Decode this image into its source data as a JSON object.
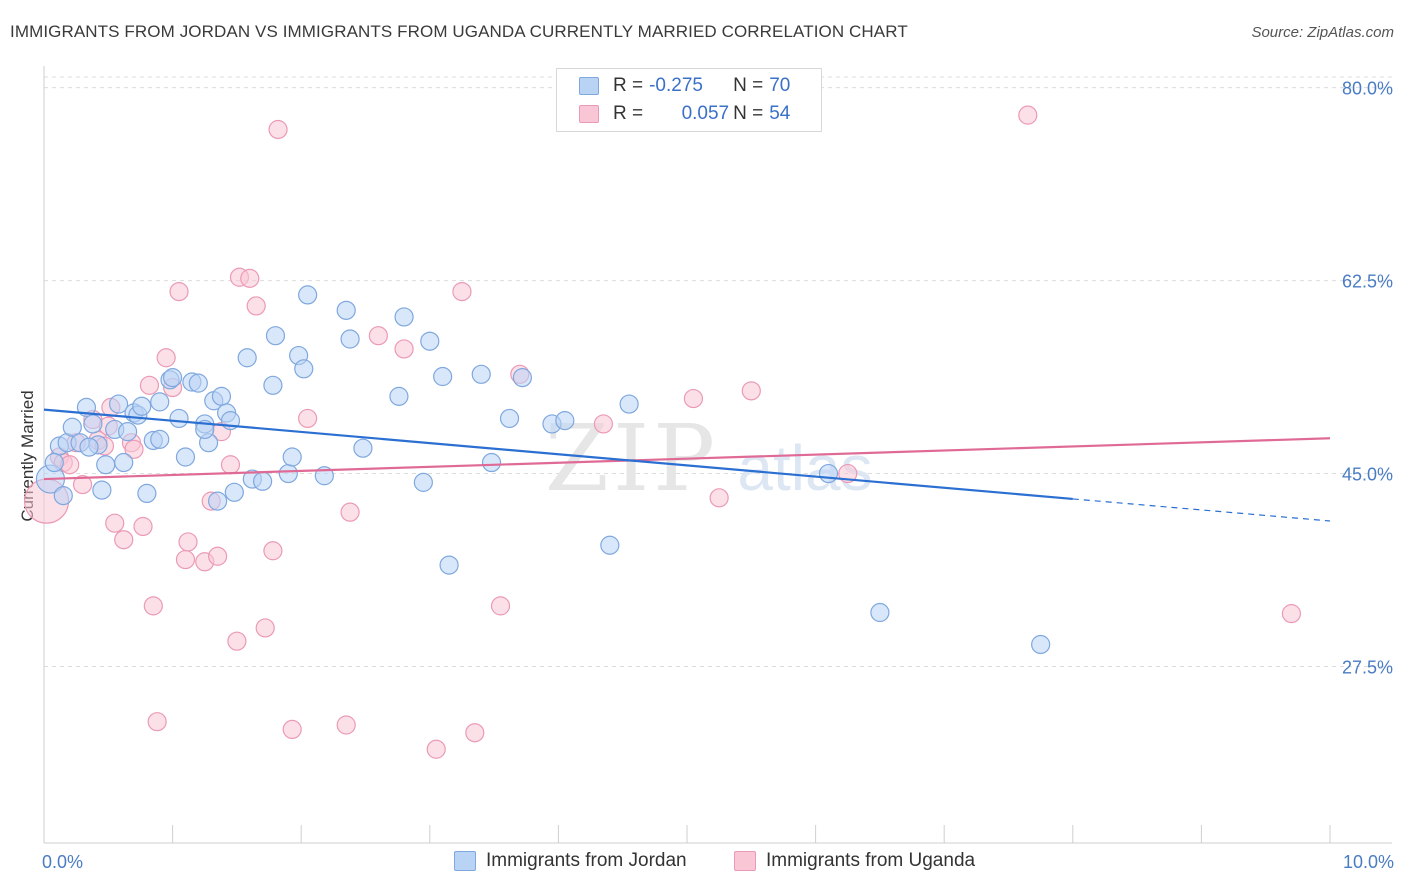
{
  "title": "IMMIGRANTS FROM JORDAN VS IMMIGRANTS FROM UGANDA CURRENTLY MARRIED CORRELATION CHART",
  "source": "Source: ZipAtlas.com",
  "watermark": {
    "zip": "ZIP",
    "atlas": "atlas"
  },
  "colors": {
    "jordan_fill": "#b9d3f5",
    "jordan_stroke": "#7fa8de",
    "jordan_line": "#2a6fd1",
    "uganda_fill": "#f9c6d6",
    "uganda_stroke": "#eb9ab5",
    "uganda_line": "#e06a96",
    "tick": "#4a7cc4",
    "grid": "#dcdcdc"
  },
  "legend": {
    "r_label": "R =",
    "n_label": "N =",
    "rows": [
      {
        "series": "jordan",
        "r": "-0.275",
        "n": "70"
      },
      {
        "series": "uganda",
        "r": "0.057",
        "n": "54"
      }
    ]
  },
  "bottom_legend": [
    "Immigrants from Jordan",
    "Immigrants from Uganda"
  ],
  "chart_data": {
    "type": "scatter",
    "title": "IMMIGRANTS FROM JORDAN VS IMMIGRANTS FROM UGANDA CURRENTLY MARRIED CORRELATION CHART",
    "xlabel": "",
    "ylabel": "Currently Married",
    "xlim": [
      0,
      10
    ],
    "ylim": [
      11.5,
      82.5
    ],
    "x_tick_labels": [
      "0.0%",
      "10.0%"
    ],
    "y_ticks": [
      27.5,
      45.0,
      62.5,
      80.0
    ],
    "y_tick_labels": [
      "27.5%",
      "45.0%",
      "62.5%",
      "80.0%"
    ],
    "grid": true,
    "legend_position": "top-center",
    "series": [
      {
        "name": "Immigrants from Jordan",
        "color": "#b9d3f5",
        "trend": {
          "x": [
            0.0,
            8.0
          ],
          "y": [
            50.8,
            42.7
          ],
          "dashed_extension": {
            "x": [
              8.0,
              10.0
            ],
            "y": [
              42.7,
              40.7
            ]
          }
        },
        "points": [
          [
            0.05,
            44.5
          ],
          [
            0.12,
            47.5
          ],
          [
            0.18,
            47.8
          ],
          [
            0.22,
            49.2
          ],
          [
            0.28,
            47.8
          ],
          [
            0.33,
            51.0
          ],
          [
            0.38,
            49.5
          ],
          [
            0.42,
            47.6
          ],
          [
            0.45,
            43.5
          ],
          [
            0.48,
            45.8
          ],
          [
            0.55,
            49.0
          ],
          [
            0.58,
            51.3
          ],
          [
            0.62,
            46.0
          ],
          [
            0.65,
            48.8
          ],
          [
            0.7,
            50.5
          ],
          [
            0.73,
            50.3
          ],
          [
            0.76,
            51.1
          ],
          [
            0.8,
            43.2
          ],
          [
            0.85,
            48.0
          ],
          [
            0.9,
            48.1
          ],
          [
            0.9,
            51.5
          ],
          [
            0.98,
            53.5
          ],
          [
            1.0,
            53.7
          ],
          [
            1.05,
            50.0
          ],
          [
            1.1,
            46.5
          ],
          [
            1.15,
            53.3
          ],
          [
            1.2,
            53.2
          ],
          [
            1.25,
            49.5
          ],
          [
            1.28,
            47.8
          ],
          [
            1.32,
            51.6
          ],
          [
            1.35,
            42.5
          ],
          [
            1.38,
            52.0
          ],
          [
            1.42,
            50.5
          ],
          [
            1.45,
            49.8
          ],
          [
            1.48,
            43.3
          ],
          [
            1.58,
            55.5
          ],
          [
            1.62,
            44.5
          ],
          [
            1.7,
            44.3
          ],
          [
            1.78,
            53.0
          ],
          [
            1.8,
            57.5
          ],
          [
            1.9,
            45.0
          ],
          [
            1.93,
            46.5
          ],
          [
            1.98,
            55.7
          ],
          [
            2.02,
            54.5
          ],
          [
            2.05,
            61.2
          ],
          [
            2.18,
            44.8
          ],
          [
            2.35,
            59.8
          ],
          [
            2.38,
            57.2
          ],
          [
            2.48,
            47.3
          ],
          [
            2.76,
            52.0
          ],
          [
            2.8,
            59.2
          ],
          [
            2.95,
            44.2
          ],
          [
            3.0,
            57.0
          ],
          [
            3.1,
            53.8
          ],
          [
            3.15,
            36.7
          ],
          [
            3.4,
            54.0
          ],
          [
            3.48,
            46.0
          ],
          [
            3.62,
            50.0
          ],
          [
            3.72,
            53.7
          ],
          [
            3.95,
            49.5
          ],
          [
            4.05,
            49.8
          ],
          [
            4.4,
            38.5
          ],
          [
            4.55,
            51.3
          ],
          [
            6.1,
            45.0
          ],
          [
            6.5,
            32.4
          ],
          [
            7.75,
            29.5
          ],
          [
            0.08,
            46.0
          ],
          [
            1.25,
            49.0
          ],
          [
            0.35,
            47.4
          ],
          [
            0.15,
            43.0
          ]
        ]
      },
      {
        "name": "Immigrants from Uganda",
        "color": "#f9c6d6",
        "trend": {
          "x": [
            0.0,
            10.0
          ],
          "y": [
            44.5,
            48.2
          ]
        },
        "points": [
          [
            0.02,
            42.5
          ],
          [
            0.12,
            46.5
          ],
          [
            0.15,
            46.0
          ],
          [
            0.2,
            45.8
          ],
          [
            0.25,
            47.8
          ],
          [
            0.3,
            44.0
          ],
          [
            0.38,
            49.9
          ],
          [
            0.42,
            48.0
          ],
          [
            0.47,
            47.5
          ],
          [
            0.52,
            51.0
          ],
          [
            0.55,
            40.5
          ],
          [
            0.62,
            39.0
          ],
          [
            0.68,
            47.8
          ],
          [
            0.7,
            47.2
          ],
          [
            0.77,
            40.2
          ],
          [
            0.82,
            53.0
          ],
          [
            0.85,
            33.0
          ],
          [
            0.88,
            22.5
          ],
          [
            0.95,
            55.5
          ],
          [
            1.0,
            52.8
          ],
          [
            1.05,
            61.5
          ],
          [
            1.1,
            37.2
          ],
          [
            1.12,
            38.8
          ],
          [
            1.25,
            37.0
          ],
          [
            1.3,
            42.5
          ],
          [
            1.35,
            37.5
          ],
          [
            1.38,
            48.8
          ],
          [
            1.45,
            45.8
          ],
          [
            1.5,
            29.8
          ],
          [
            1.52,
            62.8
          ],
          [
            1.6,
            62.7
          ],
          [
            1.65,
            60.2
          ],
          [
            1.72,
            31.0
          ],
          [
            1.78,
            38.0
          ],
          [
            1.82,
            76.2
          ],
          [
            1.93,
            21.8
          ],
          [
            2.05,
            50.0
          ],
          [
            2.35,
            22.2
          ],
          [
            2.38,
            41.5
          ],
          [
            2.6,
            57.5
          ],
          [
            2.8,
            56.3
          ],
          [
            3.05,
            20.0
          ],
          [
            3.25,
            61.5
          ],
          [
            3.35,
            21.5
          ],
          [
            3.55,
            33.0
          ],
          [
            3.7,
            54.0
          ],
          [
            4.35,
            49.5
          ],
          [
            5.05,
            51.8
          ],
          [
            5.25,
            42.8
          ],
          [
            5.5,
            52.5
          ],
          [
            6.25,
            45.0
          ],
          [
            7.65,
            77.5
          ],
          [
            9.7,
            32.3
          ],
          [
            0.5,
            49.3
          ]
        ]
      }
    ]
  }
}
